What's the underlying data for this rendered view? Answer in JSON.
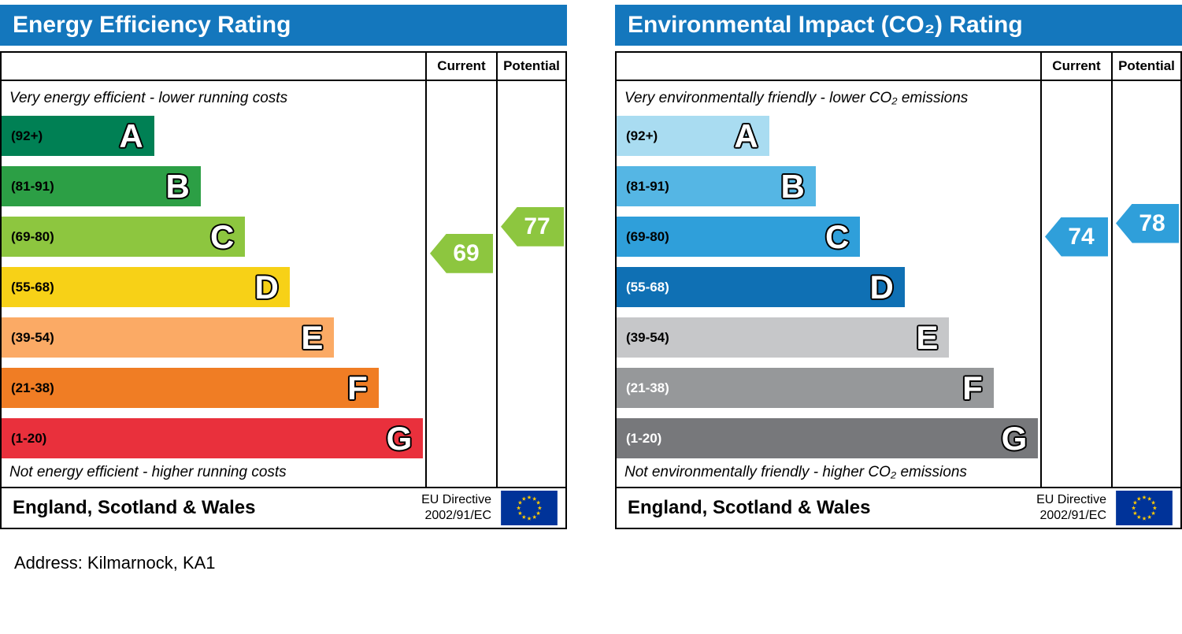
{
  "address": "Address: Kilmarnock, KA1",
  "chart_data": [
    {
      "type": "bar",
      "title": "Energy Efficiency Rating",
      "header_bg": "#1477bd",
      "columns": {
        "current": "Current",
        "potential": "Potential"
      },
      "top_note": "Very energy efficient - lower running costs",
      "bottom_note": "Not energy efficient - higher running costs",
      "footer": {
        "region": "England, Scotland & Wales",
        "directive_line1": "EU Directive",
        "directive_line2": "2002/91/EC",
        "flag": "eu-flag"
      },
      "bands": [
        {
          "letter": "A",
          "label": "(92+)",
          "min": 92,
          "max": 100,
          "color": "#008054",
          "label_color": "#000000",
          "width_pct": 36
        },
        {
          "letter": "B",
          "label": "(81-91)",
          "min": 81,
          "max": 91,
          "color": "#2c9f45",
          "label_color": "#000000",
          "width_pct": 47
        },
        {
          "letter": "C",
          "label": "(69-80)",
          "min": 69,
          "max": 80,
          "color": "#8dc63f",
          "label_color": "#000000",
          "width_pct": 57.5
        },
        {
          "letter": "D",
          "label": "(55-68)",
          "min": 55,
          "max": 68,
          "color": "#f7d117",
          "label_color": "#000000",
          "width_pct": 68
        },
        {
          "letter": "E",
          "label": "(39-54)",
          "min": 39,
          "max": 54,
          "color": "#fbaa65",
          "label_color": "#000000",
          "width_pct": 78.5
        },
        {
          "letter": "F",
          "label": "(21-38)",
          "min": 21,
          "max": 38,
          "color": "#f07d24",
          "label_color": "#000000",
          "width_pct": 89
        },
        {
          "letter": "G",
          "label": "(1-20)",
          "min": 1,
          "max": 20,
          "color": "#e9303c",
          "label_color": "#000000",
          "width_pct": 99.5
        }
      ],
      "current": {
        "value": 69,
        "color": "#8dc63f"
      },
      "potential": {
        "value": 77,
        "color": "#8dc63f"
      }
    },
    {
      "type": "bar",
      "title": "Environmental Impact (CO₂) Rating",
      "header_bg": "#1477bd",
      "columns": {
        "current": "Current",
        "potential": "Potential"
      },
      "top_note": "Very environmentally friendly - lower CO₂ emissions",
      "bottom_note": "Not environmentally friendly - higher CO₂ emissions",
      "footer": {
        "region": "England, Scotland & Wales",
        "directive_line1": "EU Directive",
        "directive_line2": "2002/91/EC",
        "flag": "eu-flag"
      },
      "bands": [
        {
          "letter": "A",
          "label": "(92+)",
          "min": 92,
          "max": 100,
          "color": "#a9dcf1",
          "label_color": "#000000",
          "width_pct": 36
        },
        {
          "letter": "B",
          "label": "(81-91)",
          "min": 81,
          "max": 91,
          "color": "#55b6e4",
          "label_color": "#000000",
          "width_pct": 47
        },
        {
          "letter": "C",
          "label": "(69-80)",
          "min": 69,
          "max": 80,
          "color": "#2f9fda",
          "label_color": "#000000",
          "width_pct": 57.5
        },
        {
          "letter": "D",
          "label": "(55-68)",
          "min": 55,
          "max": 68,
          "color": "#0f70b4",
          "label_color": "#ffffff",
          "width_pct": 68
        },
        {
          "letter": "E",
          "label": "(39-54)",
          "min": 39,
          "max": 54,
          "color": "#c6c7c9",
          "label_color": "#000000",
          "width_pct": 78.5
        },
        {
          "letter": "F",
          "label": "(21-38)",
          "min": 21,
          "max": 38,
          "color": "#96989a",
          "label_color": "#ffffff",
          "width_pct": 89
        },
        {
          "letter": "G",
          "label": "(1-20)",
          "min": 1,
          "max": 20,
          "color": "#77787b",
          "label_color": "#ffffff",
          "width_pct": 99.5
        }
      ],
      "current": {
        "value": 74,
        "color": "#2f9fda"
      },
      "potential": {
        "value": 78,
        "color": "#2f9fda"
      }
    }
  ]
}
